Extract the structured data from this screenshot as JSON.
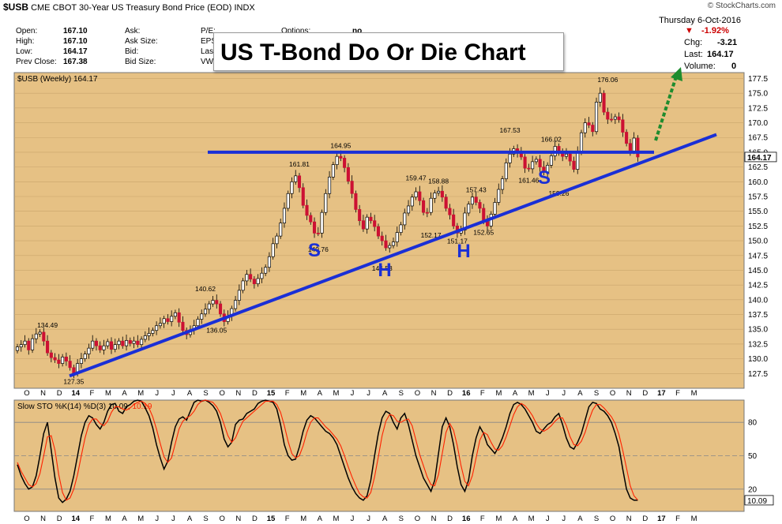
{
  "header": {
    "symbol": "$USB",
    "description": "CME CBOT 30-Year US Treasury Bond Price (EOD)",
    "exchange": "INDX",
    "source": "© StockCharts.com",
    "date": "Thursday  6-Oct-2016"
  },
  "quote": {
    "open_label": "Open:",
    "open": "167.10",
    "high_label": "High:",
    "high": "167.10",
    "low_label": "Low:",
    "low": "164.17",
    "prev_label": "Prev Close:",
    "prev": "167.38",
    "ask_label": "Ask:",
    "asksize_label": "Ask Size:",
    "bid_label": "Bid:",
    "bidsize_label": "Bid Size:",
    "pe_label": "P/E:",
    "eps_label": "EPS:",
    "last_label": "Last",
    "vwap_label": "VWAP",
    "options_label": "Options:",
    "options_val": "no",
    "pct": "-1.92%",
    "chg_label": "Chg:",
    "chg": "-3.21",
    "lastp_label": "Last:",
    "lastp": "164.17",
    "vol_label": "Volume:",
    "vol": "0"
  },
  "banner": "US T-Bond Do Or Die Chart",
  "colors": {
    "up": "#ffffff",
    "down": "#cc1133",
    "bg": "#e6c184",
    "blue": "#1a2fd6",
    "green": "#1e8c2e",
    "k": "#000000",
    "d": "#ff2200"
  },
  "chart_data": [
    {
      "type": "candlestick",
      "title": "$USB (Weekly) 164.17",
      "ylim": [
        125,
        178.5
      ],
      "yticks": [
        127.5,
        130,
        132.5,
        135,
        137.5,
        140,
        142.5,
        145,
        147.5,
        150,
        152.5,
        155,
        157.5,
        160,
        162.5,
        165,
        167.5,
        170,
        172.5,
        175,
        177.5
      ],
      "ytick_labels": [
        "127.5",
        "130.0",
        "132.5",
        "135.0",
        "137.5",
        "140.0",
        "142.5",
        "145.0",
        "147.5",
        "150.0",
        "152.5",
        "155.0",
        "157.5",
        "160.0",
        "162.5",
        "165.0",
        "167.5",
        "170.0",
        "172.5",
        "175.0",
        "177.5"
      ],
      "last_label": "164.17",
      "close": [
        132,
        132.4,
        133,
        131.5,
        133.4,
        134.2,
        134.5,
        133,
        131,
        130.2,
        129.8,
        129.2,
        130.3,
        129.6,
        128.5,
        127.5,
        129.2,
        130,
        130.8,
        131.8,
        133,
        132.2,
        131.5,
        132.2,
        132.9,
        131.6,
        132.4,
        133,
        132.2,
        133.1,
        132.6,
        133,
        132.4,
        133.3,
        133.9,
        134.3,
        134.8,
        135.6,
        136,
        136.8,
        136.3,
        137.2,
        137.8,
        136.2,
        134.8,
        134.1,
        134.9,
        135.6,
        136.7,
        137.6,
        138.4,
        139.3,
        139.9,
        139.3,
        137.6,
        136.3,
        137.2,
        138.5,
        139.9,
        141.6,
        143.2,
        144.3,
        143.5,
        142.7,
        143.6,
        144.5,
        145.5,
        147.3,
        149.5,
        150.8,
        153,
        155.5,
        158,
        160,
        161,
        159,
        156,
        154.3,
        153.2,
        151.3,
        151.3,
        154.8,
        158,
        160.8,
        162.9,
        164.3,
        164,
        162.4,
        160.1,
        158,
        155.3,
        153.4,
        152,
        154,
        153.4,
        152.4,
        150.8,
        150,
        148.8,
        149.2,
        149.8,
        151.4,
        152.7,
        154.7,
        155.9,
        157.4,
        158.3,
        156.8,
        154.8,
        154.8,
        157.2,
        158.1,
        158.4,
        157.4,
        155.5,
        154.4,
        152.5,
        151.3,
        151.8,
        154.7,
        156.2,
        157.4,
        156.5,
        155.5,
        153.3,
        152.5,
        154.5,
        156.5,
        158.7,
        160.5,
        163.2,
        164.7,
        165.6,
        164.9,
        164.2,
        162.3,
        162.2,
        163.4,
        163.8,
        162.5,
        161.6,
        162.8,
        164.4,
        166,
        164.9,
        164.3,
        164.7,
        163.5,
        162.1,
        165,
        168.3,
        170,
        169.6,
        168.5,
        173.5,
        175,
        171.8,
        170.6,
        170.6,
        171,
        170.5,
        168.4,
        166.5,
        165.2,
        167.4,
        164.2
      ],
      "up_flags": [
        1,
        1,
        1,
        0,
        1,
        1,
        1,
        0,
        0,
        0,
        0,
        0,
        1,
        0,
        0,
        0,
        1,
        1,
        1,
        1,
        1,
        0,
        0,
        1,
        1,
        0,
        1,
        1,
        0,
        1,
        0,
        1,
        0,
        1,
        1,
        1,
        1,
        1,
        1,
        1,
        0,
        1,
        1,
        0,
        0,
        0,
        1,
        1,
        1,
        1,
        1,
        1,
        1,
        0,
        0,
        0,
        1,
        1,
        1,
        1,
        1,
        1,
        0,
        0,
        1,
        1,
        1,
        1,
        1,
        1,
        1,
        1,
        1,
        1,
        1,
        0,
        0,
        0,
        0,
        0,
        0,
        1,
        1,
        1,
        1,
        1,
        0,
        0,
        0,
        0,
        0,
        0,
        0,
        1,
        0,
        0,
        0,
        0,
        0,
        1,
        1,
        1,
        1,
        1,
        1,
        1,
        1,
        0,
        0,
        0,
        1,
        1,
        1,
        0,
        0,
        0,
        0,
        0,
        1,
        1,
        1,
        1,
        0,
        0,
        0,
        0,
        1,
        1,
        1,
        1,
        1,
        1,
        1,
        0,
        0,
        0,
        0,
        1,
        1,
        0,
        0,
        1,
        1,
        1,
        0,
        0,
        1,
        0,
        0,
        1,
        1,
        1,
        0,
        0,
        1,
        1,
        0,
        0,
        0,
        1,
        0,
        0,
        0,
        0,
        1,
        0
      ],
      "annotations": [
        {
          "label": "134.49",
          "y": 134.49,
          "pos": "above"
        },
        {
          "label": "127.35",
          "y": 127.35,
          "pos": "below"
        },
        {
          "label": "140.62",
          "y": 140.62,
          "pos": "above"
        },
        {
          "label": "136.05",
          "y": 136.05,
          "pos": "below"
        },
        {
          "label": "161.81",
          "y": 161.81,
          "pos": "above"
        },
        {
          "label": "149.76",
          "y": 149.76,
          "pos": "below"
        },
        {
          "label": "164.95",
          "y": 164.95,
          "pos": "above"
        },
        {
          "label": "146.53",
          "y": 146.53,
          "pos": "below"
        },
        {
          "label": "159.47",
          "y": 159.47,
          "pos": "above"
        },
        {
          "label": "152.17",
          "y": 152.17,
          "pos": "below"
        },
        {
          "label": "158.88",
          "y": 158.88,
          "pos": "above"
        },
        {
          "label": "151.17",
          "y": 151.17,
          "pos": "below"
        },
        {
          "label": "157.43",
          "y": 157.43,
          "pos": "above"
        },
        {
          "label": "152.65",
          "y": 152.65,
          "pos": "below"
        },
        {
          "label": "167.53",
          "y": 167.53,
          "pos": "above"
        },
        {
          "label": "161.46",
          "y": 161.46,
          "pos": "below"
        },
        {
          "label": "166.02",
          "y": 166.02,
          "pos": "above"
        },
        {
          "label": "159.26",
          "y": 159.26,
          "pos": "below"
        },
        {
          "label": "176.06",
          "y": 176.06,
          "pos": "above"
        }
      ],
      "pattern_labels": [
        "S",
        "H",
        "H",
        "S"
      ],
      "neckline": 165,
      "trendline": [
        127.35,
        168
      ]
    },
    {
      "type": "line",
      "title": "Slow STO %K(14) %D(3) 10.09,",
      "title_d": "10.19",
      "ylim": [
        0,
        100
      ],
      "yticks": [
        20,
        50,
        80
      ],
      "ytick_labels": [
        "20",
        "50",
        "80"
      ],
      "last_label": "10.09",
      "series": [
        {
          "name": "%K",
          "values": [
            42,
            32,
            25,
            20,
            22,
            32,
            50,
            70,
            80,
            55,
            30,
            12,
            8,
            11,
            18,
            32,
            50,
            68,
            80,
            86,
            84,
            78,
            74,
            80,
            90,
            96,
            97,
            90,
            88,
            94,
            96,
            99,
            100,
            99,
            93,
            86,
            75,
            60,
            48,
            38,
            45,
            62,
            76,
            83,
            85,
            82,
            90,
            98,
            100,
            99,
            100,
            98,
            95,
            90,
            80,
            65,
            58,
            62,
            78,
            82,
            83,
            88,
            90,
            92,
            97,
            99,
            100,
            99,
            98,
            92,
            78,
            60,
            50,
            46,
            47,
            58,
            72,
            82,
            86,
            84,
            80,
            76,
            72,
            70,
            66,
            60,
            50,
            40,
            30,
            22,
            16,
            12,
            10,
            14,
            28,
            50,
            70,
            84,
            90,
            88,
            80,
            74,
            84,
            88,
            78,
            64,
            50,
            40,
            30,
            24,
            18,
            28,
            52,
            76,
            84,
            76,
            60,
            40,
            24,
            18,
            28,
            50,
            66,
            76,
            70,
            60,
            56,
            52,
            58,
            66,
            76,
            88,
            96,
            98,
            96,
            92,
            86,
            80,
            72,
            70,
            74,
            78,
            80,
            85,
            88,
            78,
            66,
            58,
            56,
            62,
            70,
            82,
            94,
            98,
            97,
            92,
            90,
            86,
            80,
            70,
            58,
            38,
            20,
            12,
            10,
            10
          ]
        },
        {
          "name": "%D",
          "values": [
            44,
            36,
            30,
            24,
            22,
            25,
            34,
            50,
            67,
            68,
            55,
            33,
            17,
            10,
            12,
            20,
            33,
            50,
            66,
            78,
            83,
            83,
            79,
            77,
            81,
            89,
            94,
            94,
            92,
            91,
            93,
            96,
            98,
            99,
            97,
            93,
            85,
            74,
            61,
            49,
            44,
            48,
            61,
            74,
            81,
            84,
            86,
            90,
            96,
            99,
            100,
            99,
            98,
            94,
            88,
            78,
            68,
            62,
            66,
            74,
            81,
            84,
            87,
            90,
            93,
            96,
            99,
            99,
            99,
            96,
            89,
            77,
            63,
            52,
            48,
            50,
            59,
            71,
            80,
            84,
            84,
            80,
            76,
            73,
            69,
            65,
            59,
            50,
            40,
            31,
            23,
            16,
            13,
            12,
            17,
            31,
            49,
            68,
            81,
            87,
            86,
            81,
            80,
            82,
            83,
            77,
            64,
            51,
            41,
            31,
            24,
            23,
            33,
            52,
            71,
            79,
            73,
            59,
            41,
            27,
            23,
            32,
            48,
            64,
            71,
            69,
            62,
            56,
            55,
            59,
            67,
            77,
            87,
            94,
            97,
            95,
            91,
            86,
            79,
            74,
            72,
            74,
            77,
            81,
            84,
            84,
            77,
            67,
            60,
            59,
            63,
            71,
            82,
            91,
            96,
            96,
            93,
            89,
            85,
            79,
            69,
            55,
            39,
            23,
            14,
            10.19
          ]
        }
      ]
    }
  ],
  "xaxis": {
    "labels": [
      "O",
      "N",
      "D",
      "14",
      "F",
      "M",
      "A",
      "M",
      "J",
      "J",
      "A",
      "S",
      "O",
      "N",
      "D",
      "15",
      "F",
      "M",
      "A",
      "M",
      "J",
      "J",
      "A",
      "S",
      "O",
      "N",
      "D",
      "16",
      "F",
      "M",
      "A",
      "M",
      "J",
      "J",
      "A",
      "S",
      "O",
      "N",
      "D",
      "17",
      "F",
      "M"
    ],
    "bold": [
      "14",
      "15",
      "16",
      "17"
    ]
  }
}
